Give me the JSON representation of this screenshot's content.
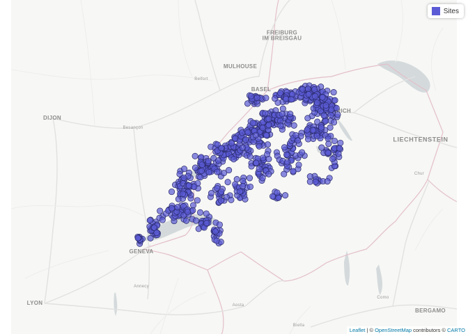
{
  "map": {
    "cities": [
      {
        "label": "FREIBURG\nIM BREISGAU",
        "cls": "major"
      },
      {
        "label": "MULHOUSE",
        "cls": "major"
      },
      {
        "label": "Belfort",
        "cls": "minor"
      },
      {
        "label": "BASEL",
        "cls": "major"
      },
      {
        "label": "DIJON",
        "cls": "major"
      },
      {
        "label": "Besançon",
        "cls": "minor"
      },
      {
        "label": "ZURICH",
        "cls": "major"
      },
      {
        "label": "LIECHTENSTEIN",
        "cls": "large"
      },
      {
        "label": "Chur",
        "cls": "minor"
      },
      {
        "label": "GENEVA",
        "cls": "major"
      },
      {
        "label": "Annecy",
        "cls": "minor"
      },
      {
        "label": "LYON",
        "cls": "major"
      },
      {
        "label": "Aosta",
        "cls": "minor"
      },
      {
        "label": "Como",
        "cls": "minor"
      },
      {
        "label": "BERGAMO",
        "cls": "major"
      },
      {
        "label": "Biella",
        "cls": "minor"
      }
    ],
    "points_color": "#5b5bd6",
    "points_stroke": "#2a2a6a"
  },
  "legend": {
    "label": "Sites",
    "color": "#5b5bd6"
  },
  "attribution": {
    "leaflet": "Leaflet",
    "sep1": " | © ",
    "osm": "OpenStreetMap",
    "mid": " contributors © ",
    "carto": "CARTO"
  }
}
